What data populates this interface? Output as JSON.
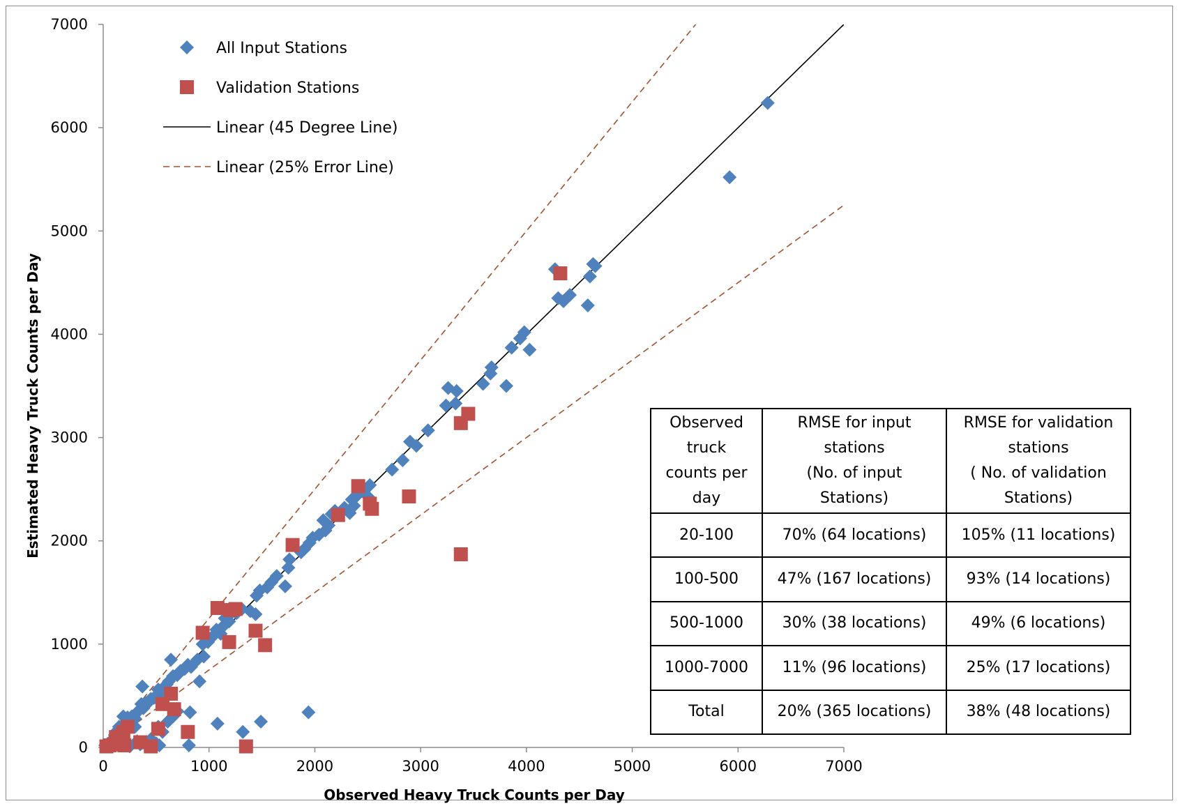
{
  "chart_data": {
    "type": "scatter",
    "xlabel": "Observed Heavy Truck Counts per Day",
    "ylabel": "Estimated Heavy Truck Counts per Day",
    "xlim": [
      0,
      7000
    ],
    "ylim": [
      0,
      7000
    ],
    "x_ticks": [
      "0",
      "1000",
      "2000",
      "3000",
      "4000",
      "5000",
      "6000",
      "7000"
    ],
    "y_ticks": [
      "0",
      "1000",
      "2000",
      "3000",
      "4000",
      "5000",
      "6000",
      "7000"
    ],
    "grid": false,
    "legend_position": "top-left",
    "legend": [
      {
        "label": "All Input Stations",
        "marker": "diamond",
        "color": "#4f81bd"
      },
      {
        "label": "Validation Stations",
        "marker": "square",
        "color": "#c0504d"
      },
      {
        "label": "Linear (45 Degree Line)",
        "marker": "solid-line",
        "color": "#000000"
      },
      {
        "label": "Linear (25% Error Line)",
        "marker": "dashed-line",
        "color": "#a0522d"
      }
    ],
    "series": [
      {
        "name": "All Input Stations",
        "marker": "diamond",
        "color": "#4f81bd",
        "points": [
          [
            6280,
            6240
          ],
          [
            5920,
            5520
          ],
          [
            4630,
            4680
          ],
          [
            4650,
            4660
          ],
          [
            4600,
            4560
          ],
          [
            4270,
            4630
          ],
          [
            4300,
            4350
          ],
          [
            4350,
            4320
          ],
          [
            4410,
            4380
          ],
          [
            4580,
            4280
          ],
          [
            3980,
            4020
          ],
          [
            3940,
            3960
          ],
          [
            3860,
            3870
          ],
          [
            4030,
            3850
          ],
          [
            3670,
            3680
          ],
          [
            3660,
            3620
          ],
          [
            3590,
            3520
          ],
          [
            3810,
            3500
          ],
          [
            3260,
            3480
          ],
          [
            3340,
            3450
          ],
          [
            3330,
            3330
          ],
          [
            3240,
            3310
          ],
          [
            3070,
            3070
          ],
          [
            2900,
            2960
          ],
          [
            2960,
            2920
          ],
          [
            2830,
            2780
          ],
          [
            2730,
            2690
          ],
          [
            2520,
            2540
          ],
          [
            2460,
            2480
          ],
          [
            2510,
            2420
          ],
          [
            2400,
            2440
          ],
          [
            2350,
            2400
          ],
          [
            2370,
            2340
          ],
          [
            2280,
            2320
          ],
          [
            2300,
            2300
          ],
          [
            2330,
            2270
          ],
          [
            2190,
            2290
          ],
          [
            2160,
            2260
          ],
          [
            2130,
            2150
          ],
          [
            2080,
            2200
          ],
          [
            2100,
            2100
          ],
          [
            2040,
            2060
          ],
          [
            1980,
            2030
          ],
          [
            1950,
            1980
          ],
          [
            1900,
            1920
          ],
          [
            1870,
            1890
          ],
          [
            1760,
            1820
          ],
          [
            1750,
            1740
          ],
          [
            1720,
            1560
          ],
          [
            1640,
            1660
          ],
          [
            1590,
            1600
          ],
          [
            1550,
            1550
          ],
          [
            1480,
            1520
          ],
          [
            1450,
            1470
          ],
          [
            1440,
            1290
          ],
          [
            1390,
            1320
          ],
          [
            1310,
            1340
          ],
          [
            1260,
            1300
          ],
          [
            1220,
            1310
          ],
          [
            1190,
            1220
          ],
          [
            1150,
            1250
          ],
          [
            1140,
            1180
          ],
          [
            1110,
            1100
          ],
          [
            1070,
            1140
          ],
          [
            1020,
            1060
          ],
          [
            990,
            1020
          ],
          [
            940,
            1000
          ],
          [
            950,
            880
          ],
          [
            890,
            850
          ],
          [
            830,
            780
          ],
          [
            800,
            800
          ],
          [
            770,
            760
          ],
          [
            730,
            740
          ],
          [
            700,
            700
          ],
          [
            660,
            690
          ],
          [
            640,
            850
          ],
          [
            620,
            640
          ],
          [
            600,
            610
          ],
          [
            590,
            570
          ],
          [
            560,
            540
          ],
          [
            520,
            560
          ],
          [
            500,
            480
          ],
          [
            480,
            480
          ],
          [
            450,
            470
          ],
          [
            430,
            440
          ],
          [
            400,
            430
          ],
          [
            370,
            590
          ],
          [
            380,
            380
          ],
          [
            360,
            420
          ],
          [
            330,
            350
          ],
          [
            310,
            330
          ],
          [
            300,
            280
          ],
          [
            270,
            300
          ],
          [
            240,
            250
          ],
          [
            230,
            290
          ],
          [
            200,
            230
          ],
          [
            190,
            300
          ],
          [
            170,
            190
          ],
          [
            150,
            200
          ],
          [
            130,
            160
          ],
          [
            110,
            120
          ],
          [
            100,
            90
          ],
          [
            80,
            60
          ],
          [
            60,
            40
          ],
          [
            40,
            30
          ],
          [
            30,
            10
          ],
          [
            20,
            20
          ],
          [
            90,
            20
          ],
          [
            140,
            50
          ],
          [
            190,
            20
          ],
          [
            250,
            10
          ],
          [
            320,
            60
          ],
          [
            350,
            30
          ],
          [
            420,
            20
          ],
          [
            450,
            80
          ],
          [
            500,
            40
          ],
          [
            530,
            20
          ],
          [
            560,
            150
          ],
          [
            610,
            250
          ],
          [
            660,
            300
          ],
          [
            700,
            350
          ],
          [
            820,
            340
          ],
          [
            810,
            20
          ],
          [
            910,
            640
          ],
          [
            1080,
            230
          ],
          [
            1320,
            150
          ],
          [
            1490,
            250
          ],
          [
            1940,
            340
          ],
          [
            520,
            200
          ],
          [
            300,
            200
          ]
        ]
      },
      {
        "name": "Validation Stations",
        "marker": "square",
        "color": "#c0504d",
        "points": [
          [
            4320,
            4590
          ],
          [
            3450,
            3230
          ],
          [
            3380,
            3140
          ],
          [
            2410,
            2530
          ],
          [
            2520,
            2360
          ],
          [
            2540,
            2310
          ],
          [
            2890,
            2430
          ],
          [
            2220,
            2250
          ],
          [
            1790,
            1960
          ],
          [
            3380,
            1870
          ],
          [
            1080,
            1350
          ],
          [
            1200,
            1330
          ],
          [
            1250,
            1340
          ],
          [
            940,
            1110
          ],
          [
            1440,
            1130
          ],
          [
            1190,
            1020
          ],
          [
            1530,
            990
          ],
          [
            640,
            520
          ],
          [
            560,
            420
          ],
          [
            670,
            370
          ],
          [
            520,
            180
          ],
          [
            800,
            150
          ],
          [
            350,
            50
          ],
          [
            450,
            10
          ],
          [
            1350,
            10
          ],
          [
            230,
            200
          ],
          [
            190,
            150
          ],
          [
            170,
            110
          ],
          [
            140,
            60
          ],
          [
            120,
            100
          ],
          [
            100,
            30
          ],
          [
            60,
            20
          ],
          [
            30,
            10
          ],
          [
            200,
            20
          ]
        ]
      },
      {
        "name": "Linear (45 Degree Line)",
        "type": "line",
        "color": "#000000",
        "points": [
          [
            0,
            0
          ],
          [
            7000,
            7000
          ]
        ]
      },
      {
        "name": "Linear (25% Error Line)",
        "type": "line",
        "dashed": true,
        "color": "#a0522d",
        "lines": [
          [
            [
              0,
              0
            ],
            [
              5600,
              7000
            ]
          ],
          [
            [
              0,
              0
            ],
            [
              7000,
              5250
            ]
          ]
        ]
      }
    ]
  },
  "rmse_table": {
    "headers": [
      [
        "Observed",
        "truck",
        "counts per",
        "day"
      ],
      [
        "RMSE for input",
        "stations",
        "(No. of input",
        "Stations)"
      ],
      [
        "RMSE for validation",
        "stations",
        "( No. of validation",
        "Stations)"
      ]
    ],
    "rows": [
      [
        "20-100",
        "70% (64 locations)",
        "105% (11 locations)"
      ],
      [
        "100-500",
        "47% (167 locations)",
        "93% (14 locations)"
      ],
      [
        "500-1000",
        "30% (38 locations)",
        "49% (6 locations)"
      ],
      [
        "1000-7000",
        "11% (96 locations)",
        "25% (17 locations)"
      ],
      [
        "Total",
        "20% (365 locations)",
        "38% (48 locations)"
      ]
    ]
  }
}
